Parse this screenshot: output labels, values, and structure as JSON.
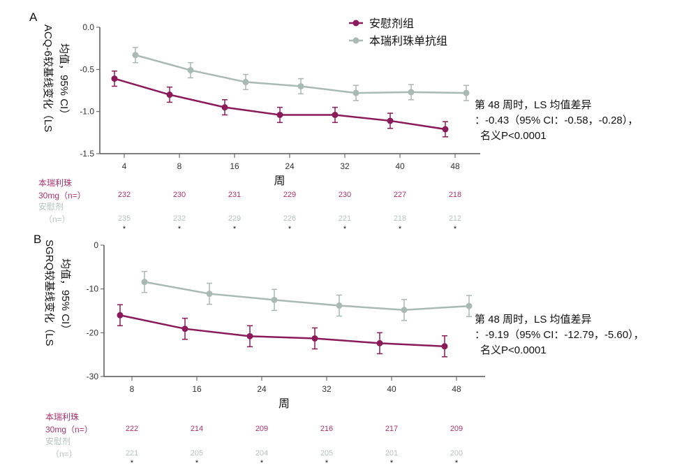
{
  "legend": [
    {
      "name": "安慰剂组",
      "color": "#8b1a5a"
    },
    {
      "name": "本瑞利珠单抗组",
      "color": "#a9b9b4"
    }
  ],
  "chart_data": [
    {
      "panel": "A",
      "type": "line",
      "ylabel": "ACQ-6较基线变化（LS均值，95% CI）",
      "xlabel": "周",
      "ylim": [
        -1.5,
        0
      ],
      "yticks": [
        "0.0",
        "-0.5",
        "-1.0",
        "-1.5"
      ],
      "ytick_values": [
        0,
        -0.5,
        -1,
        -1.5
      ],
      "categories": [
        "4",
        "8",
        "16",
        "24",
        "32",
        "40",
        "48"
      ],
      "series": [
        {
          "name": "安慰剂组",
          "color": "#8b1a5a",
          "values": [
            -0.61,
            -0.8,
            -0.95,
            -1.04,
            -1.04,
            -1.11,
            -1.21
          ],
          "ci": 0.09
        },
        {
          "name": "本瑞利珠单抗组",
          "color": "#a9b9b4",
          "values": [
            -0.33,
            -0.51,
            -0.65,
            -0.7,
            -0.78,
            -0.77,
            -0.78
          ],
          "ci": 0.09
        }
      ],
      "annotation": [
        "第 48 周时，LS 均值差异",
        "：-0.43（95% CI：-0.58，-0.28），",
        "名义P<0.0001"
      ],
      "table": [
        {
          "label1": "本瑞利珠",
          "label2": "30mg（n=）",
          "color": "#a8326e",
          "values": [
            "232",
            "230",
            "231",
            "229",
            "230",
            "227",
            "218"
          ]
        },
        {
          "label1": "安慰剂",
          "label2": "（n=）",
          "color": "#b5c4bf",
          "values": [
            "235",
            "232",
            "229",
            "226",
            "221",
            "218",
            "212"
          ]
        }
      ],
      "marker": "*"
    },
    {
      "panel": "B",
      "type": "line",
      "ylabel": "SGRQ较基线变化（LS均值，95% CI）",
      "xlabel": "周",
      "ylim": [
        -30,
        0
      ],
      "yticks": [
        "0",
        "-10",
        "-20",
        "-30"
      ],
      "ytick_values": [
        0,
        -10,
        -20,
        -30
      ],
      "categories": [
        "8",
        "16",
        "24",
        "32",
        "40",
        "48"
      ],
      "series": [
        {
          "name": "安慰剂组",
          "color": "#8b1a5a",
          "values": [
            -16.0,
            -19.1,
            -20.8,
            -21.3,
            -22.4,
            -23.1
          ],
          "ci": 2.4
        },
        {
          "name": "本瑞利珠单抗组",
          "color": "#a9b9b4",
          "values": [
            -8.4,
            -11.1,
            -12.5,
            -13.8,
            -14.8,
            -13.9
          ],
          "ci": 2.4
        }
      ],
      "annotation": [
        "第 48 周时，LS 均值差异",
        "：-9.19（95% CI：-12.79，-5.60），",
        "名义P<0.0001"
      ],
      "table": [
        {
          "label1": "本瑞利珠",
          "label2": "30mg（n=）",
          "color": "#a8326e",
          "values": [
            "222",
            "214",
            "209",
            "216",
            "217",
            "209"
          ]
        },
        {
          "label1": "安慰剂",
          "label2": "（n=）",
          "color": "#b5c4bf",
          "values": [
            "221",
            "205",
            "204",
            "205",
            "201",
            "200"
          ]
        }
      ],
      "marker": "*"
    }
  ]
}
